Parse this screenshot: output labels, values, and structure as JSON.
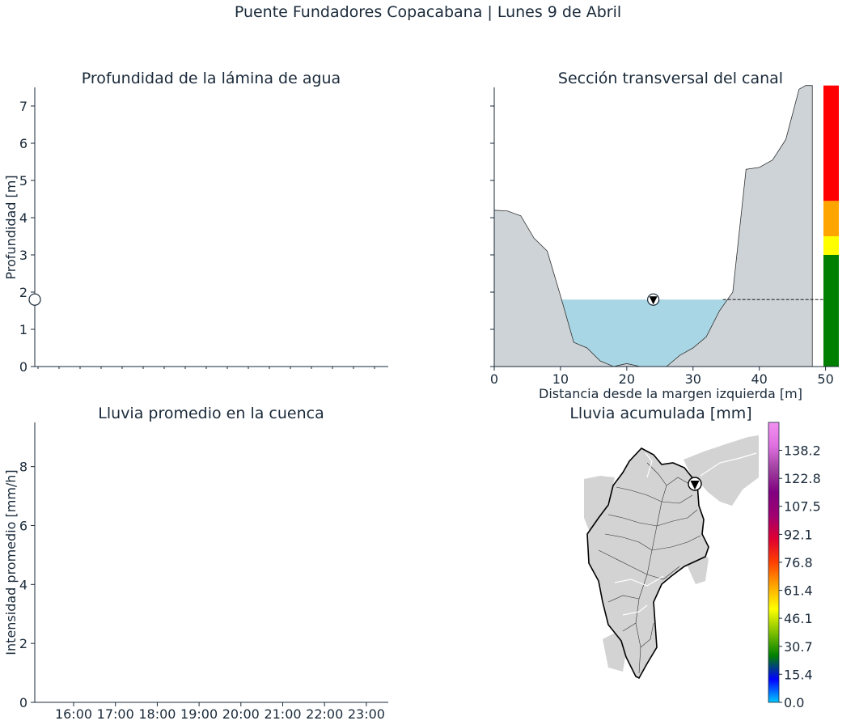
{
  "figure": {
    "title": "Puente Fundadores Copacabana | Lunes 9 de Abril"
  },
  "chart_data": [
    {
      "id": "depth",
      "type": "line",
      "title": "Profundidad de la lámina de agua",
      "xlabel": "",
      "ylabel": "Profundidad [m]",
      "ylim": [
        0,
        7.5
      ],
      "yticks": [
        "0",
        "1",
        "2",
        "3",
        "4",
        "5",
        "6",
        "7"
      ],
      "current_depth": 1.8,
      "grid": false
    },
    {
      "id": "section",
      "type": "area",
      "title": "Sección transversal del canal",
      "xlabel": "Distancia desde la margen izquierda [m]",
      "ylabel": "",
      "xlim": [
        0,
        52
      ],
      "ylim": [
        0,
        7.5
      ],
      "xticks": [
        "0",
        "10",
        "20",
        "30",
        "40",
        "50"
      ],
      "profile_x": [
        0,
        2,
        4,
        6,
        8,
        10,
        12,
        14,
        16,
        18,
        20,
        22,
        24,
        26,
        28,
        30,
        32,
        34,
        36,
        38,
        40,
        42,
        44,
        46,
        47,
        48
      ],
      "profile_y": [
        4.2,
        4.18,
        4.05,
        3.45,
        3.1,
        1.9,
        0.65,
        0.5,
        0.15,
        0.0,
        0.08,
        0.0,
        0.0,
        0.0,
        0.3,
        0.5,
        0.8,
        1.5,
        2.0,
        5.3,
        5.35,
        5.55,
        6.1,
        7.45,
        7.55,
        7.55
      ],
      "water_level": 1.8,
      "marker_x": 24,
      "levels": [
        {
          "from": 0,
          "to": 3.0,
          "color": "#008000"
        },
        {
          "from": 3.0,
          "to": 3.5,
          "color": "#ffff00"
        },
        {
          "from": 3.5,
          "to": 4.45,
          "color": "#ffa500"
        },
        {
          "from": 4.45,
          "to": 7.55,
          "color": "#ff0000"
        }
      ],
      "colors": {
        "terrain": "#cdd3d6",
        "water": "#a8d6e4"
      }
    },
    {
      "id": "rain",
      "type": "bar",
      "title": "Lluvia promedio en la cuenca",
      "xlabel": "",
      "ylabel": "Intensidad promedio [mm/h]",
      "ylim": [
        0,
        9.5
      ],
      "yticks": [
        "0",
        "2",
        "4",
        "6",
        "8"
      ],
      "xticks": [
        "16:00",
        "17:00",
        "18:00",
        "19:00",
        "20:00",
        "21:00",
        "22:00",
        "23:00"
      ],
      "values": []
    },
    {
      "id": "map",
      "type": "heatmap",
      "title": "Lluvia acumulada [mm]",
      "colorbar_ticks": [
        "0.0",
        "15.4",
        "30.7",
        "46.1",
        "61.4",
        "76.8",
        "92.1",
        "107.5",
        "122.8",
        "138.2"
      ],
      "colorbar_max": 153.5,
      "colorbar_colors": [
        "#00c8ff",
        "#0000ff",
        "#008000",
        "#80c000",
        "#ffff00",
        "#ffa500",
        "#ff4000",
        "#e00030",
        "#a00070",
        "#800080",
        "#a040a0",
        "#e070e0",
        "#f090f0"
      ]
    }
  ]
}
